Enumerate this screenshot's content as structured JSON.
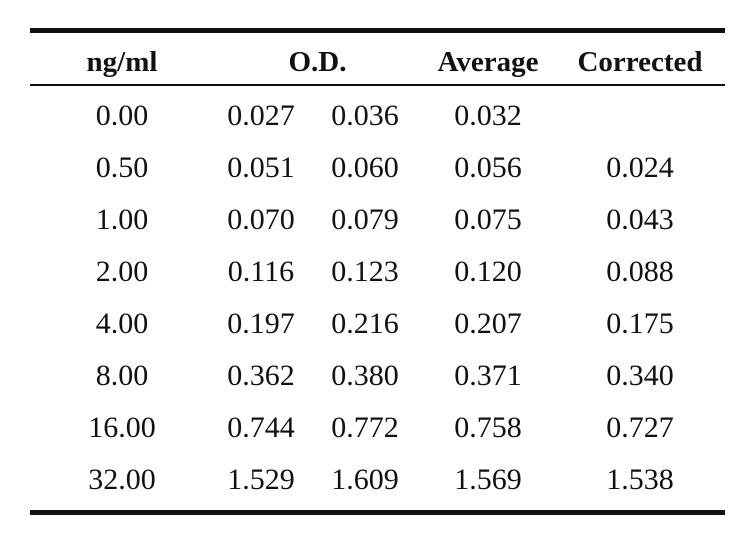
{
  "table": {
    "headers": {
      "concentration": "ng/ml",
      "od": "O.D.",
      "average": "Average",
      "corrected": "Corrected"
    },
    "rows": [
      {
        "concentration": "0.00",
        "od1": "0.027",
        "od2": "0.036",
        "average": "0.032",
        "corrected": ""
      },
      {
        "concentration": "0.50",
        "od1": "0.051",
        "od2": "0.060",
        "average": "0.056",
        "corrected": "0.024"
      },
      {
        "concentration": "1.00",
        "od1": "0.070",
        "od2": "0.079",
        "average": "0.075",
        "corrected": "0.043"
      },
      {
        "concentration": "2.00",
        "od1": "0.116",
        "od2": "0.123",
        "average": "0.120",
        "corrected": "0.088"
      },
      {
        "concentration": "4.00",
        "od1": "0.197",
        "od2": "0.216",
        "average": "0.207",
        "corrected": "0.175"
      },
      {
        "concentration": "8.00",
        "od1": "0.362",
        "od2": "0.380",
        "average": "0.371",
        "corrected": "0.340"
      },
      {
        "concentration": "16.00",
        "od1": "0.744",
        "od2": "0.772",
        "average": "0.758",
        "corrected": "0.727"
      },
      {
        "concentration": "32.00",
        "od1": "1.529",
        "od2": "1.609",
        "average": "1.569",
        "corrected": "1.538"
      }
    ]
  }
}
